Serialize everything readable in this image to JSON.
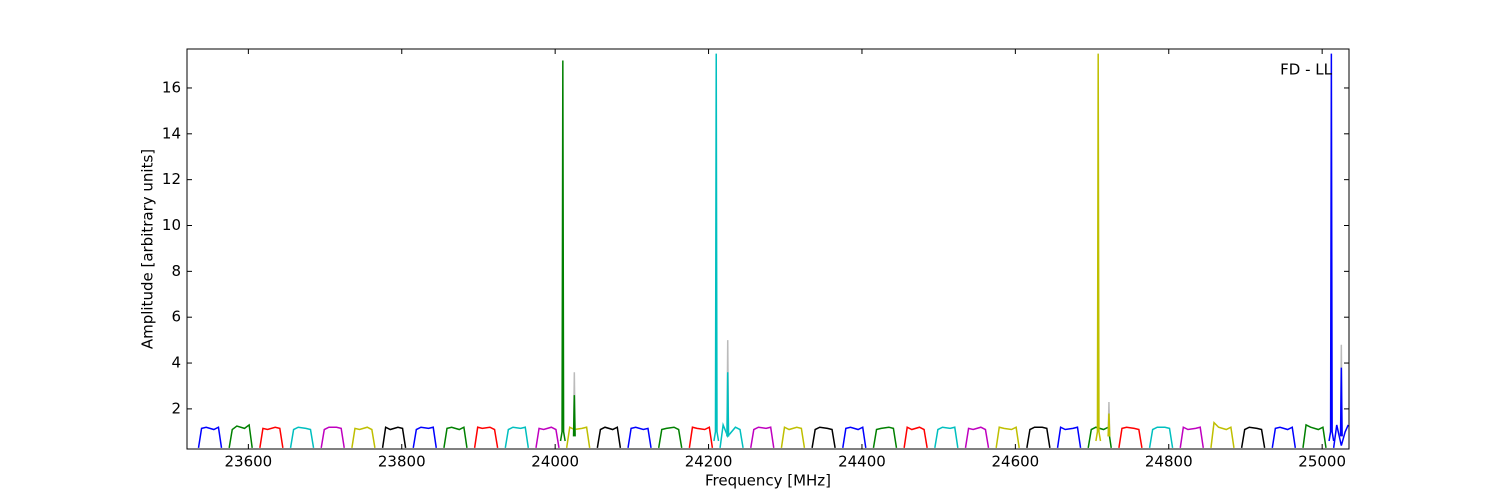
{
  "chart_data": {
    "type": "line",
    "annotation": "FD - LL",
    "xlabel": "Frequency [MHz]",
    "ylabel": "Amplitude [arbitrary units]",
    "xlim": [
      23520,
      25035
    ],
    "ylim": [
      0.25,
      17.7
    ],
    "xticks": [
      23600,
      23800,
      24000,
      24200,
      24400,
      24600,
      24800,
      25000
    ],
    "yticks": [
      2,
      4,
      6,
      8,
      10,
      12,
      14,
      16
    ],
    "series": [
      {
        "color": "#0000ff",
        "x": [
          23535,
          23539,
          23545,
          23555,
          23561,
          23565
        ],
        "values": [
          0.3,
          1.15,
          1.2,
          1.1,
          1.2,
          0.3
        ]
      },
      {
        "color": "#008000",
        "x": [
          23575,
          23579,
          23585,
          23595,
          23601,
          23605
        ],
        "values": [
          0.3,
          1.1,
          1.25,
          1.15,
          1.3,
          0.3
        ]
      },
      {
        "color": "#ff0000",
        "x": [
          23615,
          23619,
          23625,
          23635,
          23641,
          23645
        ],
        "values": [
          0.3,
          1.15,
          1.1,
          1.2,
          1.15,
          0.3
        ]
      },
      {
        "color": "#00bfbf",
        "x": [
          23655,
          23659,
          23665,
          23675,
          23681,
          23685
        ],
        "values": [
          0.3,
          1.1,
          1.2,
          1.15,
          1.1,
          0.3
        ]
      },
      {
        "color": "#bf00bf",
        "x": [
          23695,
          23699,
          23705,
          23715,
          23721,
          23725
        ],
        "values": [
          0.3,
          1.1,
          1.2,
          1.2,
          1.15,
          0.3
        ]
      },
      {
        "color": "#bfbf00",
        "x": [
          23735,
          23739,
          23745,
          23755,
          23761,
          23765
        ],
        "values": [
          0.3,
          1.15,
          1.1,
          1.2,
          1.1,
          0.3
        ]
      },
      {
        "color": "#000000",
        "x": [
          23775,
          23779,
          23785,
          23795,
          23801,
          23805
        ],
        "values": [
          0.3,
          1.2,
          1.1,
          1.2,
          1.15,
          0.3
        ]
      },
      {
        "color": "#0000ff",
        "x": [
          23815,
          23819,
          23825,
          23835,
          23841,
          23845
        ],
        "values": [
          0.3,
          1.1,
          1.2,
          1.15,
          1.2,
          0.3
        ]
      },
      {
        "color": "#008000",
        "x": [
          23855,
          23859,
          23865,
          23875,
          23881,
          23885
        ],
        "values": [
          0.3,
          1.15,
          1.2,
          1.1,
          1.2,
          0.3
        ]
      },
      {
        "color": "#ff0000",
        "x": [
          23895,
          23899,
          23905,
          23915,
          23921,
          23925
        ],
        "values": [
          0.3,
          1.2,
          1.15,
          1.2,
          1.1,
          0.3
        ]
      },
      {
        "color": "#00bfbf",
        "x": [
          23935,
          23939,
          23945,
          23955,
          23961,
          23965
        ],
        "values": [
          0.3,
          1.1,
          1.2,
          1.15,
          1.2,
          0.3
        ]
      },
      {
        "color": "#bf00bf",
        "x": [
          23975,
          23979,
          23985,
          23995,
          24001,
          24005
        ],
        "values": [
          0.3,
          1.15,
          1.1,
          1.2,
          1.1,
          0.3
        ]
      },
      {
        "color": "#bfbf00",
        "x": [
          24015,
          24019,
          24025,
          24035,
          24041,
          24045
        ],
        "values": [
          0.3,
          1.2,
          1.1,
          1.15,
          1.2,
          0.3
        ]
      },
      {
        "color": "#000000",
        "x": [
          24055,
          24059,
          24065,
          24075,
          24081,
          24085
        ],
        "values": [
          0.3,
          1.1,
          1.2,
          1.1,
          1.2,
          0.3
        ]
      },
      {
        "color": "#0000ff",
        "x": [
          24095,
          24099,
          24105,
          24115,
          24121,
          24125
        ],
        "values": [
          0.3,
          1.15,
          1.2,
          1.1,
          1.15,
          0.3
        ]
      },
      {
        "color": "#008000",
        "x": [
          24135,
          24139,
          24145,
          24155,
          24161,
          24165
        ],
        "values": [
          0.3,
          1.1,
          1.15,
          1.2,
          1.1,
          0.3
        ]
      },
      {
        "color": "#ff0000",
        "x": [
          24175,
          24179,
          24185,
          24195,
          24201,
          24205
        ],
        "values": [
          0.3,
          1.2,
          1.15,
          1.1,
          1.2,
          0.3
        ]
      },
      {
        "color": "#00bfbf",
        "x": [
          24215,
          24219,
          24225,
          24235,
          24241,
          24245
        ],
        "values": [
          0.3,
          1.3,
          0.8,
          1.2,
          1.1,
          0.3
        ]
      },
      {
        "color": "#bf00bf",
        "x": [
          24255,
          24259,
          24265,
          24275,
          24281,
          24285
        ],
        "values": [
          0.3,
          1.1,
          1.2,
          1.15,
          1.2,
          0.3
        ]
      },
      {
        "color": "#bfbf00",
        "x": [
          24295,
          24299,
          24305,
          24315,
          24321,
          24325
        ],
        "values": [
          0.3,
          1.2,
          1.1,
          1.2,
          1.15,
          0.3
        ]
      },
      {
        "color": "#000000",
        "x": [
          24335,
          24339,
          24345,
          24355,
          24361,
          24365
        ],
        "values": [
          0.3,
          1.1,
          1.2,
          1.15,
          1.1,
          0.3
        ]
      },
      {
        "color": "#0000ff",
        "x": [
          24375,
          24379,
          24385,
          24395,
          24401,
          24405
        ],
        "values": [
          0.3,
          1.15,
          1.2,
          1.1,
          1.2,
          0.3
        ]
      },
      {
        "color": "#008000",
        "x": [
          24415,
          24419,
          24425,
          24435,
          24441,
          24445
        ],
        "values": [
          0.3,
          1.1,
          1.15,
          1.2,
          1.15,
          0.3
        ]
      },
      {
        "color": "#ff0000",
        "x": [
          24455,
          24459,
          24465,
          24475,
          24481,
          24485
        ],
        "values": [
          0.3,
          1.2,
          1.1,
          1.2,
          1.1,
          0.3
        ]
      },
      {
        "color": "#00bfbf",
        "x": [
          24495,
          24499,
          24505,
          24515,
          24521,
          24525
        ],
        "values": [
          0.3,
          1.1,
          1.2,
          1.15,
          1.2,
          0.3
        ]
      },
      {
        "color": "#bf00bf",
        "x": [
          24535,
          24539,
          24545,
          24555,
          24561,
          24565
        ],
        "values": [
          0.3,
          1.15,
          1.1,
          1.2,
          1.1,
          0.3
        ]
      },
      {
        "color": "#bfbf00",
        "x": [
          24575,
          24579,
          24585,
          24595,
          24601,
          24605
        ],
        "values": [
          0.3,
          1.2,
          1.15,
          1.1,
          1.2,
          0.3
        ]
      },
      {
        "color": "#000000",
        "x": [
          24615,
          24619,
          24625,
          24635,
          24641,
          24645
        ],
        "values": [
          0.3,
          1.1,
          1.2,
          1.2,
          1.15,
          0.3
        ]
      },
      {
        "color": "#0000ff",
        "x": [
          24655,
          24659,
          24665,
          24675,
          24681,
          24685
        ],
        "values": [
          0.3,
          1.2,
          1.1,
          1.15,
          1.2,
          0.3
        ]
      },
      {
        "color": "#008000",
        "x": [
          24695,
          24699,
          24705,
          24715,
          24721,
          24725
        ],
        "values": [
          0.3,
          1.1,
          1.2,
          1.1,
          1.2,
          0.3
        ]
      },
      {
        "color": "#ff0000",
        "x": [
          24735,
          24739,
          24745,
          24755,
          24761,
          24765
        ],
        "values": [
          0.3,
          1.15,
          1.2,
          1.15,
          1.1,
          0.3
        ]
      },
      {
        "color": "#00bfbf",
        "x": [
          24775,
          24779,
          24785,
          24795,
          24801,
          24805
        ],
        "values": [
          0.3,
          1.1,
          1.2,
          1.2,
          1.15,
          0.3
        ]
      },
      {
        "color": "#bf00bf",
        "x": [
          24815,
          24819,
          24825,
          24835,
          24841,
          24845
        ],
        "values": [
          0.3,
          1.2,
          1.1,
          1.15,
          1.2,
          0.3
        ]
      },
      {
        "color": "#bfbf00",
        "x": [
          24855,
          24859,
          24865,
          24875,
          24881,
          24885
        ],
        "values": [
          0.3,
          1.4,
          1.2,
          1.1,
          1.2,
          0.3
        ]
      },
      {
        "color": "#000000",
        "x": [
          24895,
          24899,
          24905,
          24915,
          24921,
          24925
        ],
        "values": [
          0.3,
          1.1,
          1.2,
          1.15,
          1.1,
          0.3
        ]
      },
      {
        "color": "#0000ff",
        "x": [
          24935,
          24939,
          24945,
          24955,
          24961,
          24965
        ],
        "values": [
          0.3,
          1.15,
          1.2,
          1.1,
          1.2,
          0.3
        ]
      },
      {
        "color": "#008000",
        "x": [
          24975,
          24979,
          24985,
          24995,
          25001,
          25005
        ],
        "values": [
          0.3,
          1.3,
          1.2,
          1.1,
          1.2,
          0.3
        ]
      },
      {
        "color": "#0000ff",
        "x": [
          25015,
          25019,
          25025,
          25030,
          25034
        ],
        "values": [
          0.3,
          1.3,
          0.4,
          1.0,
          1.3
        ]
      },
      {
        "color": "#008000",
        "x": [
          24007,
          24009,
          24010,
          24011,
          24013
        ],
        "values": [
          0.6,
          1.0,
          17.2,
          1.0,
          0.6
        ]
      },
      {
        "color": "#00bfbf",
        "x": [
          24207,
          24209,
          24210,
          24211,
          24213
        ],
        "values": [
          0.6,
          1.0,
          17.5,
          1.0,
          0.6
        ]
      },
      {
        "color": "#bfbf00",
        "x": [
          24705,
          24707,
          24708,
          24709,
          24711
        ],
        "values": [
          0.6,
          1.0,
          17.5,
          1.0,
          0.6
        ]
      },
      {
        "color": "#0000ff",
        "x": [
          25009,
          25011,
          25012,
          25013,
          25015
        ],
        "values": [
          0.6,
          1.0,
          17.5,
          1.0,
          0.6
        ]
      },
      {
        "color": "#bbbbbb",
        "x": [
          24024,
          24025,
          24026
        ],
        "values": [
          0.8,
          3.6,
          0.8
        ]
      },
      {
        "color": "#008000",
        "x": [
          24024,
          24025,
          24026
        ],
        "values": [
          0.8,
          2.6,
          0.8
        ]
      },
      {
        "color": "#bbbbbb",
        "x": [
          24224,
          24225,
          24226
        ],
        "values": [
          0.8,
          5.0,
          0.8
        ]
      },
      {
        "color": "#00bfbf",
        "x": [
          24224,
          24225,
          24226
        ],
        "values": [
          0.8,
          3.6,
          0.8
        ]
      },
      {
        "color": "#bbbbbb",
        "x": [
          24721,
          24722,
          24723
        ],
        "values": [
          0.8,
          2.3,
          0.8
        ]
      },
      {
        "color": "#bfbf00",
        "x": [
          24721,
          24722,
          24723
        ],
        "values": [
          0.8,
          1.8,
          0.8
        ]
      },
      {
        "color": "#bbbbbb",
        "x": [
          25024,
          25025,
          25026
        ],
        "values": [
          0.8,
          4.8,
          0.8
        ]
      },
      {
        "color": "#0000ff",
        "x": [
          25024,
          25025,
          25026
        ],
        "values": [
          0.8,
          3.8,
          0.8
        ]
      }
    ]
  }
}
